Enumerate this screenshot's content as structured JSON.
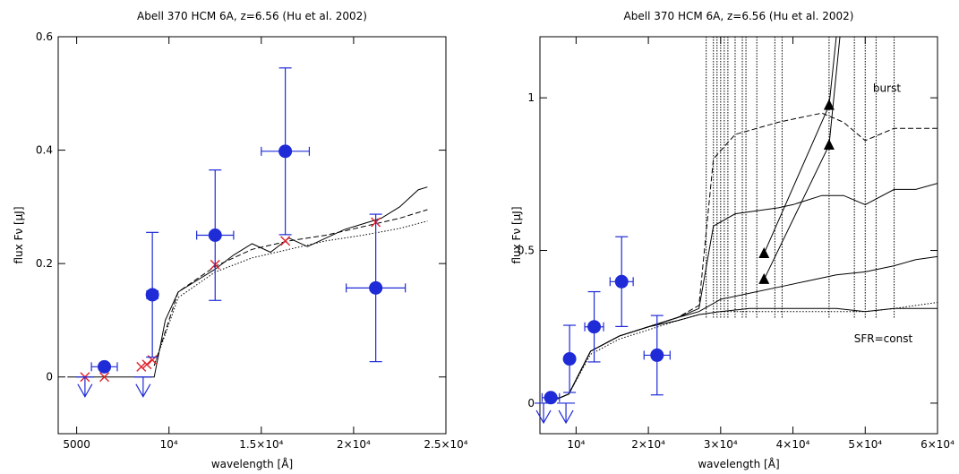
{
  "chart_data": [
    {
      "type": "scatter",
      "title": "Abell 370 HCM 6A, z=6.56 (Hu et al. 2002)",
      "xlabel": "wavelength [Å]",
      "ylabel": "flux Fν [μJ]",
      "xlim": [
        4000,
        25000
      ],
      "ylim": [
        -0.1,
        0.6
      ],
      "xticks": [
        {
          "v": 5000,
          "label": "5000"
        },
        {
          "v": 10000,
          "label": "10⁴"
        },
        {
          "v": 15000,
          "label": "1.5×10⁴"
        },
        {
          "v": 20000,
          "label": "2×10⁴"
        },
        {
          "v": 25000,
          "label": "2.5×10⁴"
        }
      ],
      "yticks": [
        {
          "v": 0,
          "label": "0"
        },
        {
          "v": 0.2,
          "label": "0.2"
        },
        {
          "v": 0.4,
          "label": "0.4"
        },
        {
          "v": 0.6,
          "label": "0.6"
        }
      ],
      "observed": [
        {
          "x": 6500,
          "y": 0.018,
          "xerr": 700,
          "yerr": 0.0
        },
        {
          "x": 9100,
          "y": 0.145,
          "xerr": 300,
          "yerr": 0.11
        },
        {
          "x": 12500,
          "y": 0.25,
          "xerr": 1000,
          "yerr": 0.115
        },
        {
          "x": 16300,
          "y": 0.398,
          "xerr": 1300,
          "yerr": 0.147
        },
        {
          "x": 21200,
          "y": 0.157,
          "xerr": 1600,
          "yerr": 0.13
        }
      ],
      "upper_limits": [
        {
          "x": 5450,
          "y": 0.0
        },
        {
          "x": 8600,
          "y": 0.0
        }
      ],
      "model_points": [
        {
          "x": 5450,
          "y": 0.0
        },
        {
          "x": 6500,
          "y": 0.0
        },
        {
          "x": 8500,
          "y": 0.018
        },
        {
          "x": 8800,
          "y": 0.022
        },
        {
          "x": 9100,
          "y": 0.03
        },
        {
          "x": 12500,
          "y": 0.198
        },
        {
          "x": 16300,
          "y": 0.24
        },
        {
          "x": 21200,
          "y": 0.273
        }
      ],
      "model_curves": [
        {
          "style": "solid",
          "x": [
            4500,
            9200,
            9800,
            10500,
            11500,
            12500,
            13500,
            14500,
            15500,
            16500,
            17500,
            18500,
            19500,
            20500,
            21500,
            22500,
            23500,
            24000
          ],
          "y": [
            0.0,
            0.0,
            0.1,
            0.15,
            0.17,
            0.19,
            0.215,
            0.235,
            0.22,
            0.245,
            0.23,
            0.245,
            0.26,
            0.27,
            0.28,
            0.3,
            0.33,
            0.335
          ]
        },
        {
          "style": "dashed",
          "x": [
            9200,
            10500,
            12500,
            14500,
            16500,
            18500,
            20500,
            22500,
            24000
          ],
          "y": [
            0.02,
            0.15,
            0.195,
            0.225,
            0.24,
            0.25,
            0.265,
            0.28,
            0.295
          ]
        },
        {
          "style": "dotted",
          "x": [
            9200,
            10500,
            12500,
            14500,
            16500,
            18500,
            20500,
            22500,
            24000
          ],
          "y": [
            0.02,
            0.14,
            0.185,
            0.21,
            0.225,
            0.24,
            0.25,
            0.262,
            0.275
          ]
        }
      ]
    },
    {
      "type": "scatter",
      "title": "Abell 370 HCM 6A, z=6.56 (Hu et al. 2002)",
      "xlabel": "wavelength [Å]",
      "ylabel": "flux Fν [μJ]",
      "xlim": [
        5000,
        60000
      ],
      "ylim": [
        -0.1,
        1.2
      ],
      "xticks": [
        {
          "v": 10000,
          "label": "10⁴"
        },
        {
          "v": 20000,
          "label": "2×10⁴"
        },
        {
          "v": 30000,
          "label": "3×10⁴"
        },
        {
          "v": 40000,
          "label": "4×10⁴"
        },
        {
          "v": 50000,
          "label": "5×10⁴"
        },
        {
          "v": 60000,
          "label": "6×10⁴"
        }
      ],
      "yticks": [
        {
          "v": 0,
          "label": "0"
        },
        {
          "v": 0.5,
          "label": "0.5"
        },
        {
          "v": 1,
          "label": "1"
        }
      ],
      "annotations": [
        {
          "text": "burst",
          "x": 53000,
          "y": 1.02
        },
        {
          "text": "SFR=const",
          "x": 52500,
          "y": 0.2
        }
      ],
      "observed": [
        {
          "x": 6500,
          "y": 0.018,
          "xerr": 1200,
          "yerr": 0.0
        },
        {
          "x": 9100,
          "y": 0.145,
          "xerr": 500,
          "yerr": 0.11
        },
        {
          "x": 12500,
          "y": 0.25,
          "xerr": 1300,
          "yerr": 0.115
        },
        {
          "x": 16300,
          "y": 0.398,
          "xerr": 1600,
          "yerr": 0.147
        },
        {
          "x": 21200,
          "y": 0.157,
          "xerr": 1800,
          "yerr": 0.13
        }
      ],
      "upper_limits": [
        {
          "x": 5500,
          "y": 0.0
        },
        {
          "x": 8600,
          "y": 0.0
        }
      ],
      "triangles": [
        {
          "x": 36000,
          "y": 0.49
        },
        {
          "x": 36000,
          "y": 0.405
        },
        {
          "x": 45000,
          "y": 0.975
        },
        {
          "x": 45000,
          "y": 0.845
        }
      ],
      "lines": [
        {
          "x": [
            36000,
            45000,
            46000
          ],
          "y": [
            0.49,
            0.975,
            1.2
          ]
        },
        {
          "x": [
            36000,
            45000,
            46500
          ],
          "y": [
            0.405,
            0.845,
            1.2
          ]
        }
      ],
      "model_curves": [
        {
          "style": "dashed",
          "x": [
            6000,
            9000,
            12000,
            16000,
            20000,
            24000,
            27000,
            29000,
            32000,
            35000,
            38000,
            40000,
            44000,
            47000,
            50000,
            54000,
            57000,
            60000
          ],
          "y": [
            0.0,
            0.03,
            0.17,
            0.22,
            0.25,
            0.28,
            0.32,
            0.8,
            0.88,
            0.9,
            0.92,
            0.93,
            0.95,
            0.92,
            0.86,
            0.9,
            0.9,
            0.9
          ]
        },
        {
          "style": "solid",
          "x": [
            6000,
            9000,
            12000,
            16000,
            20000,
            24000,
            27000,
            29000,
            32000,
            35000,
            38000,
            40000,
            44000,
            47000,
            50000,
            54000,
            57000,
            60000
          ],
          "y": [
            0.0,
            0.03,
            0.17,
            0.22,
            0.25,
            0.28,
            0.31,
            0.58,
            0.62,
            0.63,
            0.64,
            0.65,
            0.68,
            0.68,
            0.65,
            0.7,
            0.7,
            0.72
          ]
        },
        {
          "style": "solid",
          "x": [
            6000,
            9000,
            12000,
            16000,
            20000,
            24000,
            27000,
            30000,
            34000,
            38000,
            42000,
            46000,
            50000,
            54000,
            57000,
            60000
          ],
          "y": [
            0.0,
            0.03,
            0.17,
            0.22,
            0.25,
            0.28,
            0.3,
            0.34,
            0.36,
            0.38,
            0.4,
            0.42,
            0.43,
            0.45,
            0.47,
            0.48
          ]
        },
        {
          "style": "solid",
          "x": [
            6000,
            9000,
            12000,
            16000,
            20000,
            24000,
            27000,
            30000,
            34000,
            38000,
            42000,
            46000,
            50000,
            54000,
            57000,
            60000
          ],
          "y": [
            0.0,
            0.03,
            0.17,
            0.22,
            0.25,
            0.27,
            0.29,
            0.3,
            0.31,
            0.31,
            0.31,
            0.31,
            0.3,
            0.31,
            0.31,
            0.31
          ]
        },
        {
          "style": "dotted",
          "x": [
            6000,
            9000,
            12000,
            16000,
            20000,
            24000,
            27000,
            30000,
            34000,
            38000,
            42000,
            46000,
            50000,
            54000,
            57000,
            60000
          ],
          "y": [
            0.0,
            0.03,
            0.16,
            0.21,
            0.24,
            0.27,
            0.29,
            0.3,
            0.3,
            0.3,
            0.3,
            0.3,
            0.3,
            0.31,
            0.32,
            0.33
          ]
        }
      ],
      "emission_lines": [
        28000,
        29000,
        29500,
        30000,
        30500,
        31000,
        32000,
        33000,
        33500,
        35000,
        37500,
        38500,
        45000,
        48500,
        50000,
        51500,
        54000
      ]
    }
  ]
}
